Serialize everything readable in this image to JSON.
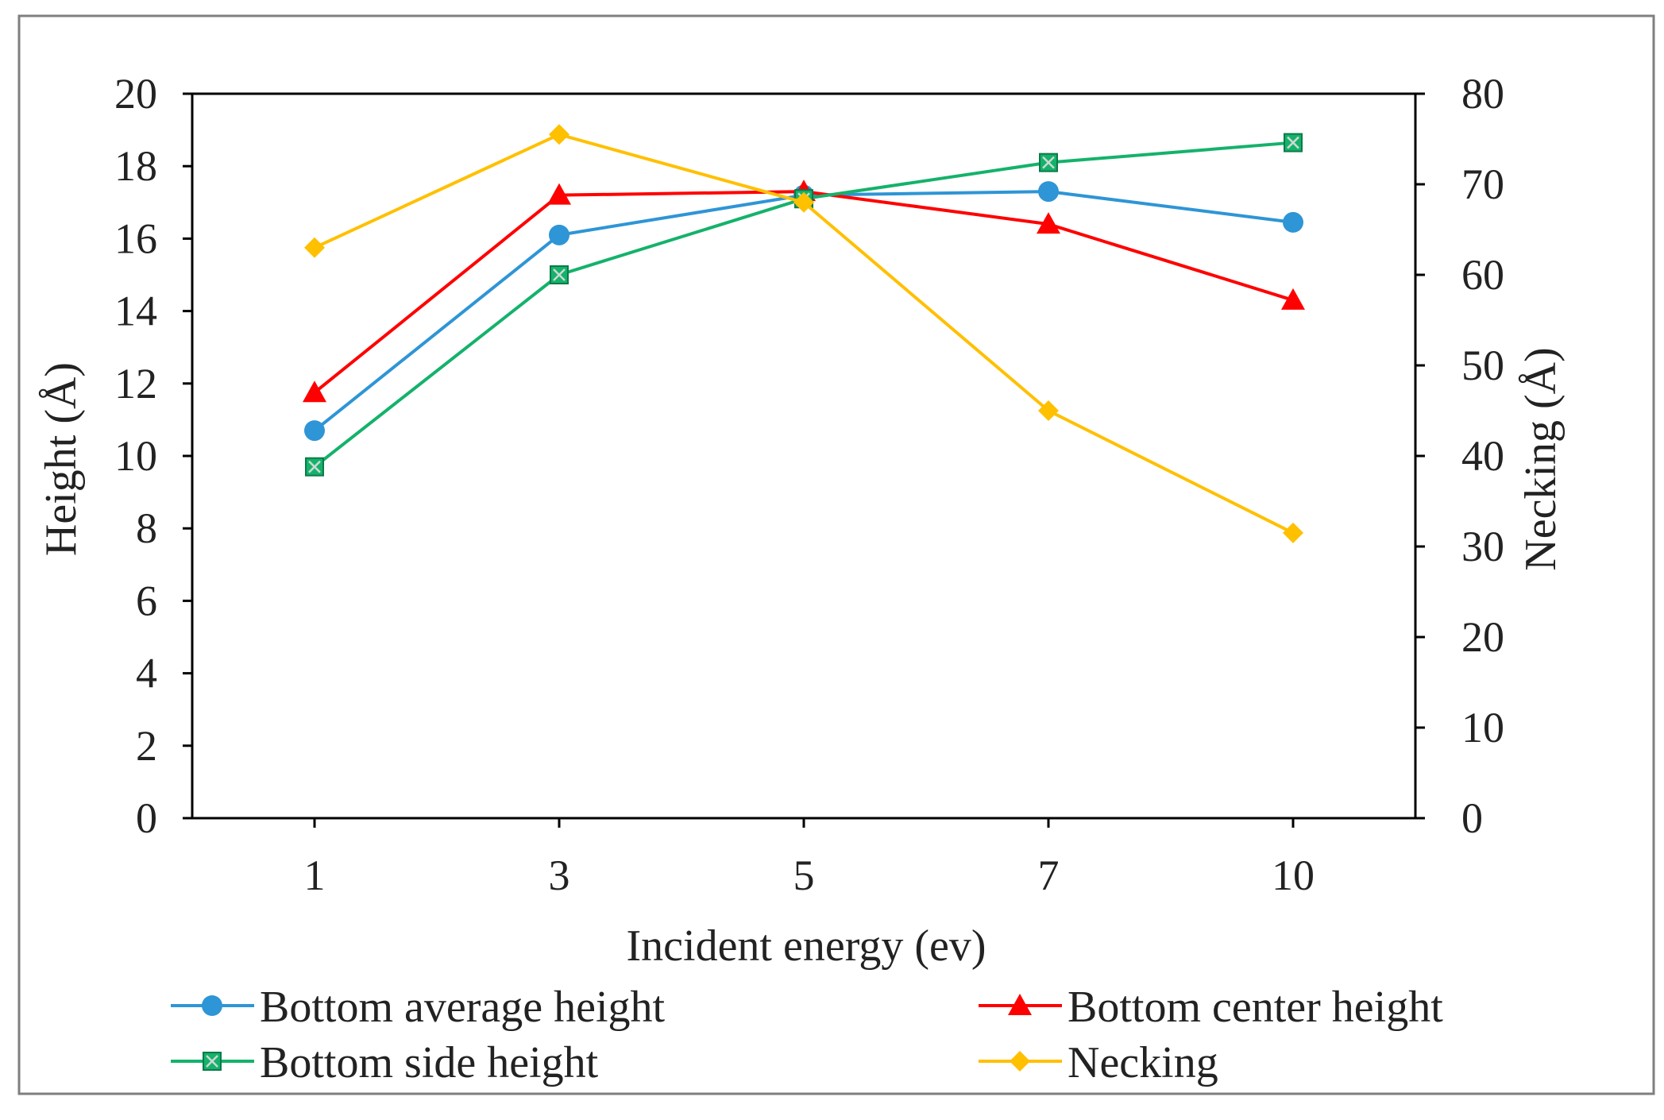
{
  "chart_data": {
    "type": "line",
    "title": "",
    "xlabel": "Incident energy (ev)",
    "ylabel": "Height  (Å)",
    "y2label": "Necking  (Å)",
    "categories": [
      "1",
      "3",
      "5",
      "7",
      "10"
    ],
    "ylim": [
      0,
      20
    ],
    "y2lim": [
      0,
      80
    ],
    "yticks": [
      0,
      2,
      4,
      6,
      8,
      10,
      12,
      14,
      16,
      18,
      20
    ],
    "y2ticks": [
      0,
      10,
      20,
      30,
      40,
      50,
      60,
      70,
      80
    ],
    "grid": false,
    "legend_position": "bottom",
    "series": [
      {
        "name": "Bottom average height",
        "axis": "left",
        "marker": "circle",
        "color": "#2e95d6",
        "values": [
          10.7,
          16.1,
          17.2,
          17.3,
          16.45
        ]
      },
      {
        "name": "Bottom center height",
        "axis": "left",
        "marker": "triangle",
        "color": "#ff0000",
        "values": [
          11.75,
          17.2,
          17.3,
          16.4,
          14.3
        ]
      },
      {
        "name": "Bottom side height",
        "axis": "left",
        "marker": "square-x",
        "color": "#14b26b",
        "values": [
          9.7,
          15.0,
          17.1,
          18.1,
          18.65
        ]
      },
      {
        "name": "Necking",
        "axis": "right",
        "marker": "diamond",
        "color": "#ffc000",
        "values": [
          63.0,
          75.5,
          68.0,
          45.0,
          31.5
        ]
      }
    ]
  }
}
